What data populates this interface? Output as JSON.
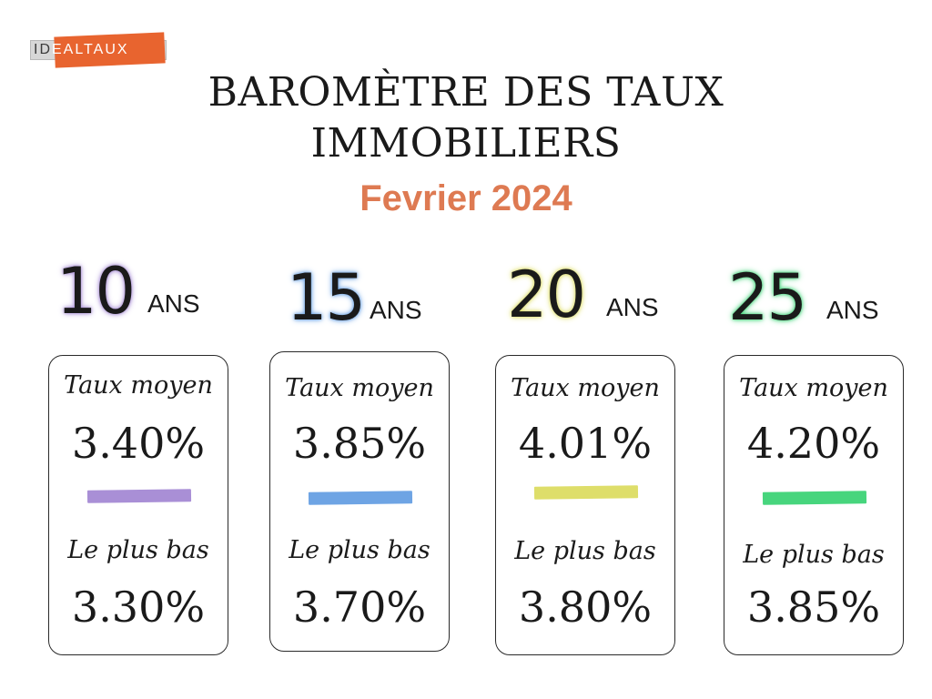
{
  "logo": {
    "part1": "ID",
    "part2": "EALTAUX"
  },
  "title": "BAROMÈTRE DES TAUX IMMOBILIERS",
  "subtitle": "Fevrier 2024",
  "colors": {
    "accent": "#de7a52",
    "logo": "#e8642f"
  },
  "durations": [
    {
      "years": "10",
      "unit": "ANS",
      "color": "#a98fd6",
      "avg_label": "Taux moyen",
      "avg_rate": "3.40%",
      "low_label": "Le plus bas",
      "low_rate": "3.30%"
    },
    {
      "years": "15",
      "unit": "ANS",
      "color": "#6ea4e4",
      "avg_label": "Taux moyen",
      "avg_rate": "3.85%",
      "low_label": "Le plus bas",
      "low_rate": "3.70%"
    },
    {
      "years": "20",
      "unit": "ANS",
      "color": "#dede6a",
      "avg_label": "Taux moyen",
      "avg_rate": "4.01%",
      "low_label": "Le plus bas",
      "low_rate": "3.80%"
    },
    {
      "years": "25",
      "unit": "ANS",
      "color": "#47d57d",
      "avg_label": "Taux moyen",
      "avg_rate": "4.20%",
      "low_label": "Le plus bas",
      "low_rate": "3.85%"
    }
  ]
}
